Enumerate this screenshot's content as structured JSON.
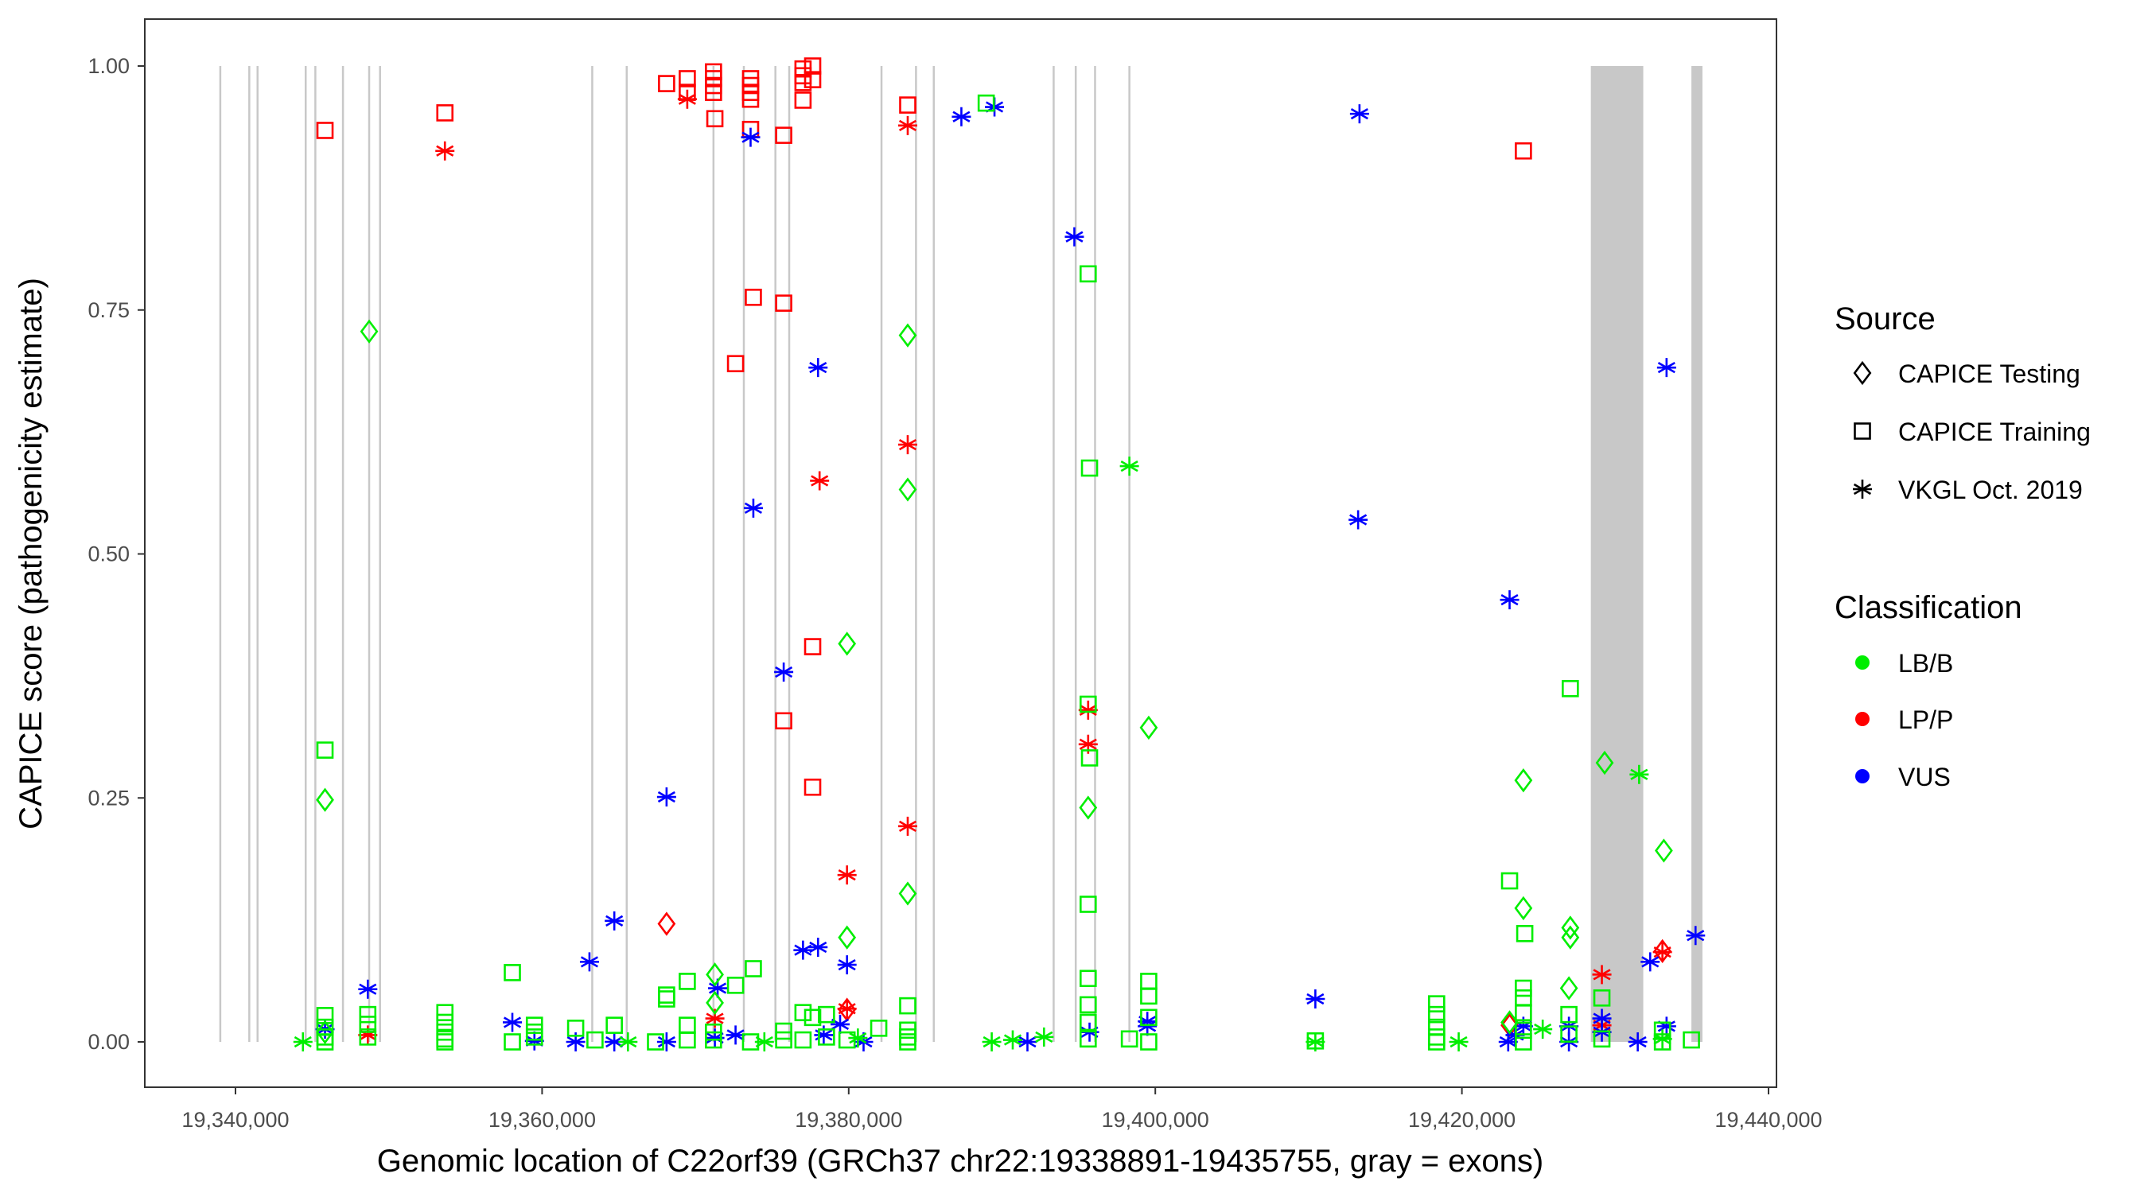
{
  "chart_data": {
    "type": "scatter",
    "title": "",
    "xlabel": "Genomic location of C22orf39 (GRCh37 chr22:19338891-19435755, gray = exons)",
    "ylabel": "CAPICE score (pathogenicity estimate)",
    "xlim": [
      19334000,
      19440500
    ],
    "ylim": [
      -0.045,
      1.05
    ],
    "x_ticks": [
      19340000,
      19360000,
      19380000,
      19400000,
      19420000,
      19440000
    ],
    "x_tick_labels": [
      "19,340,000",
      "19,360,000",
      "19,380,000",
      "19,400,000",
      "19,420,000",
      "19,440,000"
    ],
    "y_ticks": [
      0,
      0.25,
      0.5,
      0.75,
      1.0
    ],
    "y_tick_labels": [
      "0.00",
      "0.25",
      "0.50",
      "0.75",
      "1.00"
    ],
    "grid": false,
    "legend_placement": "right",
    "exon_lines": [
      19339010,
      19340900,
      19341440,
      19344580,
      19345210,
      19347010,
      19348720,
      19349430,
      19363270,
      19365520,
      19371180,
      19373160,
      19375220,
      19376120,
      19382140,
      19384390,
      19385550,
      19393370,
      19394810,
      19396070,
      19398310
    ],
    "exon_blocks": [
      [
        19428410,
        19431830
      ],
      [
        19434970,
        19435690
      ]
    ],
    "exon_color": "#c8c8c8",
    "legend": {
      "source": {
        "title": "Source",
        "items": [
          {
            "label": "CAPICE Testing",
            "shape": "diamond",
            "code": "T"
          },
          {
            "label": "CAPICE Training",
            "shape": "square",
            "code": "R"
          },
          {
            "label": "VKGL Oct. 2019",
            "shape": "asterisk",
            "code": "V"
          }
        ]
      },
      "classification": {
        "title": "Classification",
        "items": [
          {
            "label": "LB/B",
            "color": "#00ee00",
            "code": "B"
          },
          {
            "label": "LP/P",
            "color": "#ff0000",
            "code": "P"
          },
          {
            "label": "VUS",
            "color": "#0000ff",
            "code": "U"
          }
        ]
      }
    },
    "points_format": [
      "position",
      "score",
      "source",
      "classification"
    ],
    "points": [
      [
        19345840,
        0.934,
        "R",
        "P"
      ],
      [
        19353660,
        0.952,
        "R",
        "P"
      ],
      [
        19368120,
        0.982,
        "R",
        "P"
      ],
      [
        19369470,
        0.987,
        "R",
        "P"
      ],
      [
        19369470,
        0.973,
        "R",
        "P"
      ],
      [
        19371180,
        0.994,
        "R",
        "P"
      ],
      [
        19371180,
        0.987,
        "R",
        "P"
      ],
      [
        19371180,
        0.98,
        "R",
        "P"
      ],
      [
        19371180,
        0.973,
        "R",
        "P"
      ],
      [
        19371270,
        0.946,
        "R",
        "P"
      ],
      [
        19373600,
        0.987,
        "R",
        "P"
      ],
      [
        19373600,
        0.98,
        "R",
        "P"
      ],
      [
        19373600,
        0.973,
        "R",
        "P"
      ],
      [
        19373600,
        0.966,
        "R",
        "P"
      ],
      [
        19373600,
        0.935,
        "R",
        "P"
      ],
      [
        19373780,
        0.763,
        "R",
        "P"
      ],
      [
        19372620,
        0.695,
        "R",
        "P"
      ],
      [
        19375760,
        0.929,
        "R",
        "P"
      ],
      [
        19375760,
        0.757,
        "R",
        "P"
      ],
      [
        19375760,
        0.329,
        "R",
        "P"
      ],
      [
        19377020,
        0.997,
        "R",
        "P"
      ],
      [
        19377020,
        0.99,
        "R",
        "P"
      ],
      [
        19377020,
        0.983,
        "R",
        "P"
      ],
      [
        19377020,
        0.965,
        "R",
        "P"
      ],
      [
        19377650,
        1.0,
        "R",
        "P"
      ],
      [
        19377650,
        0.986,
        "R",
        "P"
      ],
      [
        19377650,
        0.405,
        "R",
        "P"
      ],
      [
        19377650,
        0.261,
        "R",
        "P"
      ],
      [
        19383850,
        0.96,
        "R",
        "P"
      ],
      [
        19424010,
        0.913,
        "R",
        "P"
      ],
      [
        19353660,
        0.913,
        "V",
        "P"
      ],
      [
        19369470,
        0.966,
        "V",
        "P"
      ],
      [
        19383850,
        0.939,
        "V",
        "P"
      ],
      [
        19383850,
        0.612,
        "V",
        "P"
      ],
      [
        19378100,
        0.575,
        "V",
        "P"
      ],
      [
        19383850,
        0.221,
        "V",
        "P"
      ],
      [
        19379890,
        0.171,
        "V",
        "P"
      ],
      [
        19395620,
        0.34,
        "V",
        "P"
      ],
      [
        19395620,
        0.305,
        "V",
        "P"
      ],
      [
        19429130,
        0.069,
        "V",
        "P"
      ],
      [
        19433080,
        0.092,
        "V",
        "P"
      ],
      [
        19348630,
        0.007,
        "V",
        "P"
      ],
      [
        19371270,
        0.024,
        "V",
        "P"
      ],
      [
        19379890,
        0.034,
        "V",
        "P"
      ],
      [
        19429130,
        0.017,
        "V",
        "P"
      ],
      [
        19368120,
        0.121,
        "T",
        "P"
      ],
      [
        19433080,
        0.093,
        "T",
        "P"
      ],
      [
        19423110,
        0.017,
        "T",
        "P"
      ],
      [
        19379890,
        0.033,
        "T",
        "P"
      ],
      [
        19373600,
        0.927,
        "V",
        "U"
      ],
      [
        19387350,
        0.948,
        "V",
        "U"
      ],
      [
        19389510,
        0.958,
        "V",
        "U"
      ],
      [
        19394720,
        0.825,
        "V",
        "U"
      ],
      [
        19413320,
        0.951,
        "V",
        "U"
      ],
      [
        19378000,
        0.691,
        "V",
        "U"
      ],
      [
        19373780,
        0.547,
        "V",
        "U"
      ],
      [
        19375760,
        0.379,
        "V",
        "U"
      ],
      [
        19368120,
        0.251,
        "V",
        "U"
      ],
      [
        19364710,
        0.124,
        "V",
        "U"
      ],
      [
        19363090,
        0.082,
        "V",
        "U"
      ],
      [
        19348630,
        0.054,
        "V",
        "U"
      ],
      [
        19371450,
        0.055,
        "V",
        "U"
      ],
      [
        19377020,
        0.094,
        "V",
        "U"
      ],
      [
        19378000,
        0.097,
        "V",
        "U"
      ],
      [
        19379890,
        0.079,
        "V",
        "U"
      ],
      [
        19413230,
        0.535,
        "V",
        "U"
      ],
      [
        19423110,
        0.453,
        "V",
        "U"
      ],
      [
        19433350,
        0.691,
        "V",
        "U"
      ],
      [
        19435240,
        0.109,
        "V",
        "U"
      ],
      [
        19432280,
        0.082,
        "V",
        "U"
      ],
      [
        19410440,
        0.044,
        "V",
        "U"
      ],
      [
        19358060,
        0.02,
        "V",
        "U"
      ],
      [
        19345840,
        0.013,
        "V",
        "U"
      ],
      [
        19359500,
        0.001,
        "V",
        "U"
      ],
      [
        19362190,
        0.0,
        "V",
        "U"
      ],
      [
        19364710,
        0.0,
        "V",
        "U"
      ],
      [
        19368120,
        0.0,
        "V",
        "U"
      ],
      [
        19371270,
        0.004,
        "V",
        "U"
      ],
      [
        19372620,
        0.007,
        "V",
        "U"
      ],
      [
        19378370,
        0.007,
        "V",
        "U"
      ],
      [
        19379440,
        0.018,
        "V",
        "U"
      ],
      [
        19380970,
        0.0,
        "V",
        "U"
      ],
      [
        19391660,
        0.0,
        "V",
        "U"
      ],
      [
        19395710,
        0.01,
        "V",
        "U"
      ],
      [
        19399480,
        0.016,
        "V",
        "U"
      ],
      [
        19399480,
        0.021,
        "V",
        "U"
      ],
      [
        19423020,
        0.0,
        "V",
        "U"
      ],
      [
        19423470,
        0.007,
        "V",
        "U"
      ],
      [
        19424010,
        0.016,
        "V",
        "U"
      ],
      [
        19426980,
        0.016,
        "V",
        "U"
      ],
      [
        19426980,
        0.0,
        "V",
        "U"
      ],
      [
        19429130,
        0.024,
        "V",
        "U"
      ],
      [
        19429130,
        0.01,
        "V",
        "U"
      ],
      [
        19431470,
        0.0,
        "V",
        "U"
      ],
      [
        19433350,
        0.016,
        "V",
        "U"
      ],
      [
        19348720,
        0.728,
        "T",
        "B"
      ],
      [
        19345840,
        0.248,
        "T",
        "B"
      ],
      [
        19383850,
        0.724,
        "T",
        "B"
      ],
      [
        19383850,
        0.566,
        "T",
        "B"
      ],
      [
        19379890,
        0.408,
        "T",
        "B"
      ],
      [
        19379890,
        0.107,
        "T",
        "B"
      ],
      [
        19383850,
        0.152,
        "T",
        "B"
      ],
      [
        19371270,
        0.069,
        "T",
        "B"
      ],
      [
        19395620,
        0.24,
        "T",
        "B"
      ],
      [
        19399570,
        0.322,
        "T",
        "B"
      ],
      [
        19429310,
        0.286,
        "T",
        "B"
      ],
      [
        19424010,
        0.268,
        "T",
        "B"
      ],
      [
        19424010,
        0.137,
        "T",
        "B"
      ],
      [
        19427070,
        0.117,
        "T",
        "B"
      ],
      [
        19427070,
        0.107,
        "T",
        "B"
      ],
      [
        19426980,
        0.055,
        "T",
        "B"
      ],
      [
        19433170,
        0.196,
        "T",
        "B"
      ],
      [
        19345840,
        0.01,
        "T",
        "B"
      ],
      [
        19371270,
        0.04,
        "T",
        "B"
      ],
      [
        19423110,
        0.02,
        "T",
        "B"
      ],
      [
        19388970,
        0.962,
        "R",
        "B"
      ],
      [
        19345840,
        0.299,
        "R",
        "B"
      ],
      [
        19395620,
        0.787,
        "R",
        "B"
      ],
      [
        19395710,
        0.588,
        "R",
        "B"
      ],
      [
        19395710,
        0.291,
        "R",
        "B"
      ],
      [
        19395620,
        0.346,
        "R",
        "B"
      ],
      [
        19395620,
        0.141,
        "R",
        "B"
      ],
      [
        19395620,
        0.065,
        "R",
        "B"
      ],
      [
        19427070,
        0.362,
        "R",
        "B"
      ],
      [
        19423110,
        0.165,
        "R",
        "B"
      ],
      [
        19424100,
        0.111,
        "R",
        "B"
      ],
      [
        19399570,
        0.062,
        "R",
        "B"
      ],
      [
        19399570,
        0.047,
        "R",
        "B"
      ],
      [
        19358060,
        0.071,
        "R",
        "B"
      ],
      [
        19373780,
        0.075,
        "R",
        "B"
      ],
      [
        19372620,
        0.058,
        "R",
        "B"
      ],
      [
        19369470,
        0.062,
        "R",
        "B"
      ],
      [
        19368120,
        0.048,
        "R",
        "B"
      ],
      [
        19368120,
        0.044,
        "R",
        "B"
      ],
      [
        19383850,
        0.037,
        "R",
        "B"
      ],
      [
        19418350,
        0.039,
        "R",
        "B"
      ],
      [
        19429130,
        0.045,
        "R",
        "B"
      ],
      [
        19424010,
        0.055,
        "R",
        "B"
      ],
      [
        19424010,
        0.045,
        "R",
        "B"
      ],
      [
        19424010,
        0.03,
        "R",
        "B"
      ],
      [
        19345840,
        0.027,
        "R",
        "B"
      ],
      [
        19345840,
        0.015,
        "R",
        "B"
      ],
      [
        19345840,
        0.005,
        "R",
        "B"
      ],
      [
        19345840,
        0.0,
        "R",
        "B"
      ],
      [
        19348630,
        0.028,
        "R",
        "B"
      ],
      [
        19348630,
        0.018,
        "R",
        "B"
      ],
      [
        19348630,
        0.005,
        "R",
        "B"
      ],
      [
        19353660,
        0.03,
        "R",
        "B"
      ],
      [
        19353660,
        0.02,
        "R",
        "B"
      ],
      [
        19353660,
        0.01,
        "R",
        "B"
      ],
      [
        19353660,
        0.003,
        "R",
        "B"
      ],
      [
        19353660,
        0.0,
        "R",
        "B"
      ],
      [
        19358060,
        0.0,
        "R",
        "B"
      ],
      [
        19359500,
        0.017,
        "R",
        "B"
      ],
      [
        19359500,
        0.01,
        "R",
        "B"
      ],
      [
        19359500,
        0.005,
        "R",
        "B"
      ],
      [
        19362190,
        0.014,
        "R",
        "B"
      ],
      [
        19363450,
        0.002,
        "R",
        "B"
      ],
      [
        19364710,
        0.017,
        "R",
        "B"
      ],
      [
        19367400,
        0.0,
        "R",
        "B"
      ],
      [
        19369470,
        0.017,
        "R",
        "B"
      ],
      [
        19369470,
        0.002,
        "R",
        "B"
      ],
      [
        19371180,
        0.01,
        "R",
        "B"
      ],
      [
        19371180,
        0.002,
        "R",
        "B"
      ],
      [
        19373600,
        0.0,
        "R",
        "B"
      ],
      [
        19375760,
        0.011,
        "R",
        "B"
      ],
      [
        19375760,
        0.002,
        "R",
        "B"
      ],
      [
        19377020,
        0.03,
        "R",
        "B"
      ],
      [
        19377020,
        0.002,
        "R",
        "B"
      ],
      [
        19377650,
        0.025,
        "R",
        "B"
      ],
      [
        19378550,
        0.028,
        "R",
        "B"
      ],
      [
        19378550,
        0.005,
        "R",
        "B"
      ],
      [
        19379890,
        0.002,
        "R",
        "B"
      ],
      [
        19381960,
        0.014,
        "R",
        "B"
      ],
      [
        19383850,
        0.012,
        "R",
        "B"
      ],
      [
        19383850,
        0.005,
        "R",
        "B"
      ],
      [
        19383850,
        0.0,
        "R",
        "B"
      ],
      [
        19395620,
        0.038,
        "R",
        "B"
      ],
      [
        19395620,
        0.02,
        "R",
        "B"
      ],
      [
        19395620,
        0.003,
        "R",
        "B"
      ],
      [
        19398310,
        0.003,
        "R",
        "B"
      ],
      [
        19399570,
        0.025,
        "R",
        "B"
      ],
      [
        19399570,
        0.0,
        "R",
        "B"
      ],
      [
        19410440,
        0.001,
        "R",
        "B"
      ],
      [
        19418350,
        0.028,
        "R",
        "B"
      ],
      [
        19418350,
        0.015,
        "R",
        "B"
      ],
      [
        19418350,
        0.005,
        "R",
        "B"
      ],
      [
        19418350,
        0.0,
        "R",
        "B"
      ],
      [
        19424010,
        0.012,
        "R",
        "B"
      ],
      [
        19424010,
        0.0,
        "R",
        "B"
      ],
      [
        19426980,
        0.028,
        "R",
        "B"
      ],
      [
        19426980,
        0.008,
        "R",
        "B"
      ],
      [
        19429130,
        0.003,
        "R",
        "B"
      ],
      [
        19433080,
        0.012,
        "R",
        "B"
      ],
      [
        19433080,
        0.0,
        "R",
        "B"
      ],
      [
        19434970,
        0.002,
        "R",
        "B"
      ],
      [
        19398310,
        0.59,
        "V",
        "B"
      ],
      [
        19431560,
        0.274,
        "V",
        "B"
      ],
      [
        19344400,
        0.0,
        "V",
        "B"
      ],
      [
        19389330,
        0.0,
        "V",
        "B"
      ],
      [
        19392740,
        0.005,
        "V",
        "B"
      ],
      [
        19419790,
        0.0,
        "V",
        "B"
      ],
      [
        19425270,
        0.013,
        "V",
        "B"
      ],
      [
        19365600,
        0.0,
        "V",
        "B"
      ],
      [
        19374500,
        0.0,
        "V",
        "B"
      ],
      [
        19390700,
        0.002,
        "V",
        "B"
      ],
      [
        19410440,
        0.0,
        "V",
        "B"
      ],
      [
        19433080,
        0.003,
        "V",
        "B"
      ],
      [
        19380600,
        0.004,
        "V",
        "B"
      ]
    ]
  }
}
